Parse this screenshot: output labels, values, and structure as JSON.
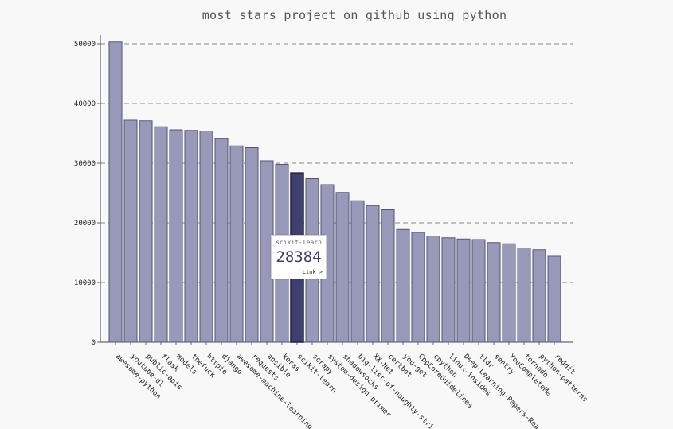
{
  "chart_data": {
    "type": "bar",
    "title": "most stars project on github using python",
    "xlabel": "",
    "ylabel": "",
    "ylim": [
      0,
      50000
    ],
    "yticks": [
      "0",
      "10000",
      "20000",
      "30000",
      "40000",
      "50000"
    ],
    "grid": "horizontal dashed",
    "categories": [
      "awesome-python",
      "youtube-dl",
      "public-apis",
      "flask",
      "models",
      "thefuck",
      "httpie",
      "django",
      "awesome-machine-learning",
      "requests",
      "ansible",
      "keras",
      "scikit-learn",
      "scrapy",
      "system-design-primer",
      "shadowsocks",
      "big-list-of-naughty-stri…",
      "XX-Net",
      "certbot",
      "you-get",
      "CppCoreGuidelines",
      "cpython",
      "linux-insides",
      "Deep-Learning-Papers-Rea…",
      "tldr",
      "sentry",
      "YouCompleteMe",
      "tornado",
      "python-patterns",
      "reddit"
    ],
    "values": [
      50300,
      37200,
      37100,
      36100,
      35600,
      35500,
      35400,
      34100,
      32900,
      32600,
      30400,
      29800,
      28384,
      27400,
      26400,
      25100,
      23700,
      22900,
      22200,
      18900,
      18400,
      17800,
      17500,
      17300,
      17200,
      16700,
      16500,
      15800,
      15500,
      14400
    ],
    "colors": {
      "bar": "#9898b8",
      "bar_stroke": "#555577",
      "highlight": "#3f3f70"
    },
    "highlighted_index": 12
  },
  "tooltip": {
    "label": "scikit-learn",
    "value": "28384",
    "link_text": "Link >"
  }
}
